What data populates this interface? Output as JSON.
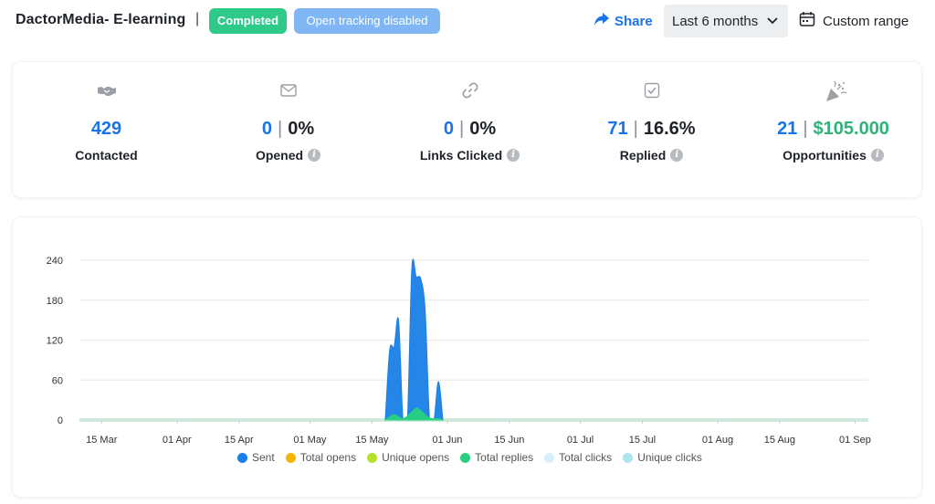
{
  "header": {
    "title": "DactorMedia- E-learning",
    "separator": "|",
    "status_badge": "Completed",
    "tracking_badge": "Open tracking disabled",
    "share_label": "Share",
    "range_value": "Last 6 months",
    "custom_range_label": "Custom range"
  },
  "stats": [
    {
      "icon": "handshake-icon",
      "value": "429",
      "secondary": "",
      "label": "Contacted",
      "info": false
    },
    {
      "icon": "envelope-icon",
      "value": "0",
      "secondary": "0%",
      "label": "Opened",
      "info": true
    },
    {
      "icon": "link-icon",
      "value": "0",
      "secondary": "0%",
      "label": "Links Clicked",
      "info": true
    },
    {
      "icon": "checkbox-icon",
      "value": "71",
      "secondary": "16.6%",
      "label": "Replied",
      "info": true
    },
    {
      "icon": "party-popper-icon",
      "value": "21",
      "secondary": "$105.000",
      "label": "Opportunities",
      "info": true
    }
  ],
  "colors": {
    "accent": "#1a73e8",
    "sent": "#1a7fe6",
    "total_opens": "#f2b705",
    "unique_opens": "#b6e22b",
    "total_replies": "#27d17f",
    "total_clicks": "#d9eefc",
    "unique_clicks": "#aee4ef"
  },
  "chart_data": {
    "type": "area",
    "y_ticks": [
      "240",
      "180",
      "120",
      "60",
      "0"
    ],
    "ylim": [
      0,
      240
    ],
    "x_ticks": [
      "15 Mar",
      "01 Apr",
      "15 Apr",
      "01 May",
      "15 May",
      "01 Jun",
      "15 Jun",
      "01 Jul",
      "15 Jul",
      "01 Aug",
      "15 Aug",
      "01 Sep"
    ],
    "x_tick_dates": [
      "2024-03-15",
      "2024-04-01",
      "2024-04-15",
      "2024-05-01",
      "2024-05-15",
      "2024-06-01",
      "2024-06-15",
      "2024-07-01",
      "2024-07-15",
      "2024-08-01",
      "2024-08-15",
      "2024-09-01"
    ],
    "xlim": [
      "2024-03-10",
      "2024-09-04"
    ],
    "legend_position": "bottom",
    "grid": true,
    "series": [
      {
        "name": "Sent",
        "color": "#1a7fe6",
        "points": [
          [
            "2024-05-18",
            0
          ],
          [
            "2024-05-19",
            105
          ],
          [
            "2024-05-20",
            110
          ],
          [
            "2024-05-21",
            150
          ],
          [
            "2024-05-22",
            0
          ],
          [
            "2024-05-23",
            0
          ],
          [
            "2024-05-24",
            228
          ],
          [
            "2024-05-25",
            215
          ],
          [
            "2024-05-26",
            212
          ],
          [
            "2024-05-27",
            165
          ],
          [
            "2024-05-28",
            0
          ],
          [
            "2024-05-29",
            0
          ],
          [
            "2024-05-30",
            58
          ],
          [
            "2024-05-31",
            0
          ]
        ]
      },
      {
        "name": "Total opens",
        "color": "#f2b705",
        "points": []
      },
      {
        "name": "Unique opens",
        "color": "#b6e22b",
        "points": []
      },
      {
        "name": "Total replies",
        "color": "#27d17f",
        "points": [
          [
            "2024-05-18",
            0
          ],
          [
            "2024-05-20",
            8
          ],
          [
            "2024-05-22",
            2
          ],
          [
            "2024-05-24",
            12
          ],
          [
            "2024-05-25",
            18
          ],
          [
            "2024-05-26",
            14
          ],
          [
            "2024-05-28",
            3
          ],
          [
            "2024-05-30",
            2
          ],
          [
            "2024-05-31",
            0
          ]
        ]
      },
      {
        "name": "Total clicks",
        "color": "#d9eefc",
        "points": []
      },
      {
        "name": "Unique clicks",
        "color": "#aee4ef",
        "points": []
      }
    ]
  }
}
